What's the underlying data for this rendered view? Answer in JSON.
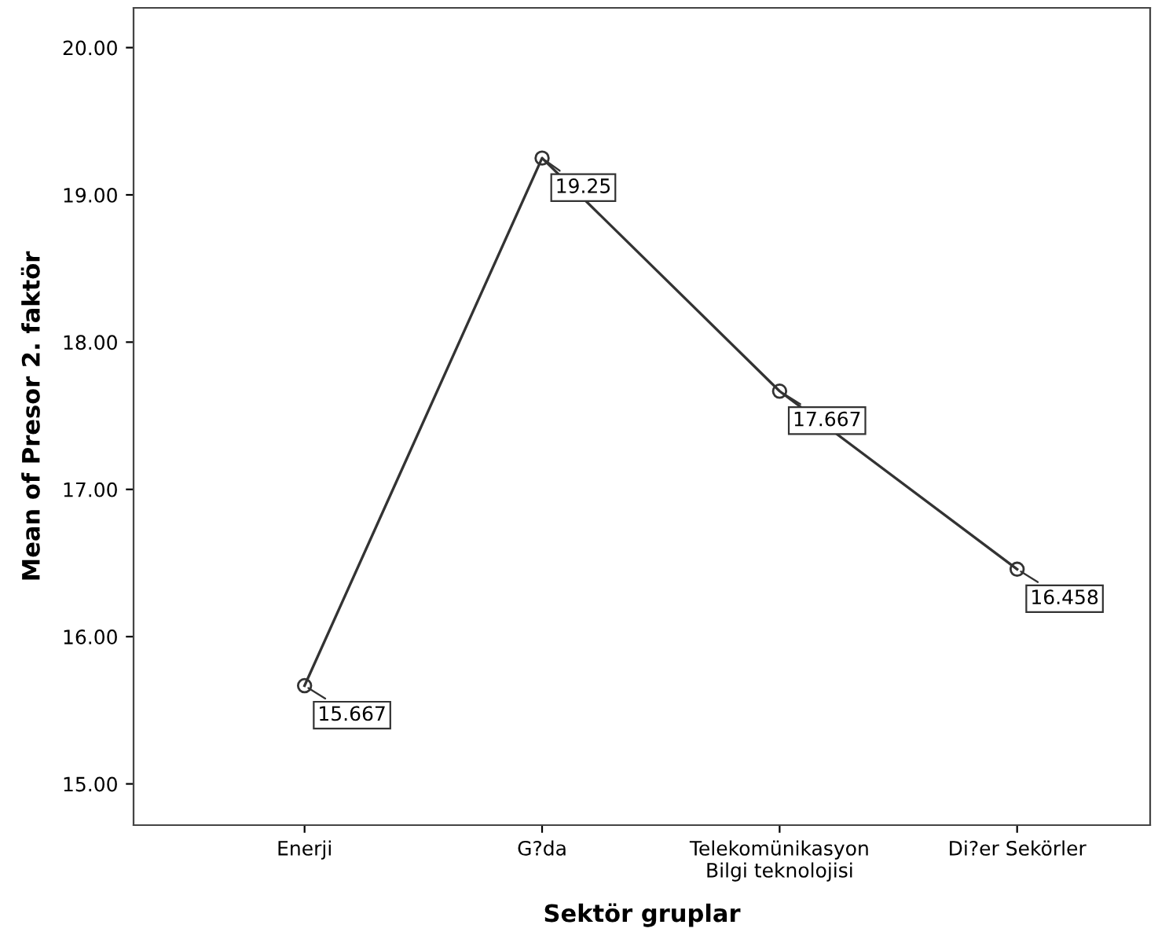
{
  "chart_data": {
    "type": "line",
    "xlabel": "Sektör gruplar",
    "ylabel": "Mean of Presor 2. faktör",
    "categories": [
      "Enerji",
      "G?da",
      "Telekomünikasyon\nBilgi teknolojisi",
      "Di?er Sekörler"
    ],
    "series": [
      {
        "color": "#333333",
        "values": [
          15.667,
          19.25,
          17.667,
          16.458
        ]
      }
    ],
    "ylim": [
      14.72,
      20.27
    ],
    "yticks": [
      {
        "value": 15,
        "label": "15.00"
      },
      {
        "value": 16,
        "label": "16.00"
      },
      {
        "value": 17,
        "label": "17.00"
      },
      {
        "value": 18,
        "label": "18.00"
      },
      {
        "value": 19,
        "label": "19.00"
      },
      {
        "value": 20,
        "label": "20.00"
      }
    ],
    "data_labels": true,
    "marker": "circle",
    "line_style": "solid",
    "grid": false,
    "legend": false
  }
}
